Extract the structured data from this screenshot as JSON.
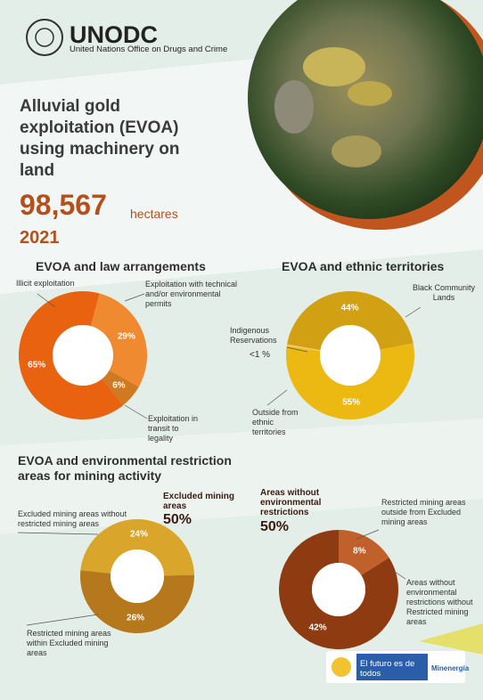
{
  "header": {
    "org": "UNODC",
    "org_full": "United Nations Office on Drugs and Crime",
    "title": "Alluvial gold exploitation (EVOA) using machinery on land",
    "area": 98567,
    "area_label": "98,567",
    "area_unit": "hectares",
    "year": "2021"
  },
  "section_title": "EVOA and environmental restriction areas for mining activity",
  "chart_data": [
    {
      "type": "pie",
      "title": "EVOA and law arrangements",
      "categories": [
        "Exploitation with technical and/or environmental permits",
        "Exploitation in transit to legality",
        "Illicit exploitation"
      ],
      "values": [
        29,
        6,
        65
      ],
      "value_labels": [
        "29%",
        "6%",
        "65%"
      ],
      "colors": [
        "#f08a30",
        "#cf7a22",
        "#e8620f"
      ]
    },
    {
      "type": "pie",
      "title": "EVOA and ethnic territories",
      "categories": [
        "Black Community Lands",
        "Outside from ethnic territories",
        "Indigenous Reservations"
      ],
      "values": [
        44,
        55,
        0.5
      ],
      "value_labels": [
        "44%",
        "55%",
        "<1 %"
      ],
      "colors": [
        "#d2a013",
        "#ecb812",
        "#f3c85a"
      ]
    },
    {
      "type": "pie",
      "subtitle": "Excluded mining areas",
      "total": 50,
      "total_label": "50%",
      "categories": [
        "Excluded mining areas without restricted mining areas",
        "Restricted mining areas within Excluded mining areas"
      ],
      "values": [
        24,
        26
      ],
      "value_labels": [
        "24%",
        "26%"
      ],
      "colors": [
        "#d9a52b",
        "#b6781c"
      ]
    },
    {
      "type": "pie",
      "subtitle": "Areas without environmental restrictions",
      "total": 50,
      "total_label": "50%",
      "categories": [
        "Restricted mining areas outside from Excluded mining areas",
        "Areas without environmental restrictions without Restricted mining areas"
      ],
      "values": [
        8,
        42
      ],
      "value_labels": [
        "8%",
        "42%"
      ],
      "colors": [
        "#c0612b",
        "#8e3b12"
      ]
    }
  ],
  "footer": {
    "slogan": "El futuro es de todos",
    "ministry": "Minenergía"
  }
}
